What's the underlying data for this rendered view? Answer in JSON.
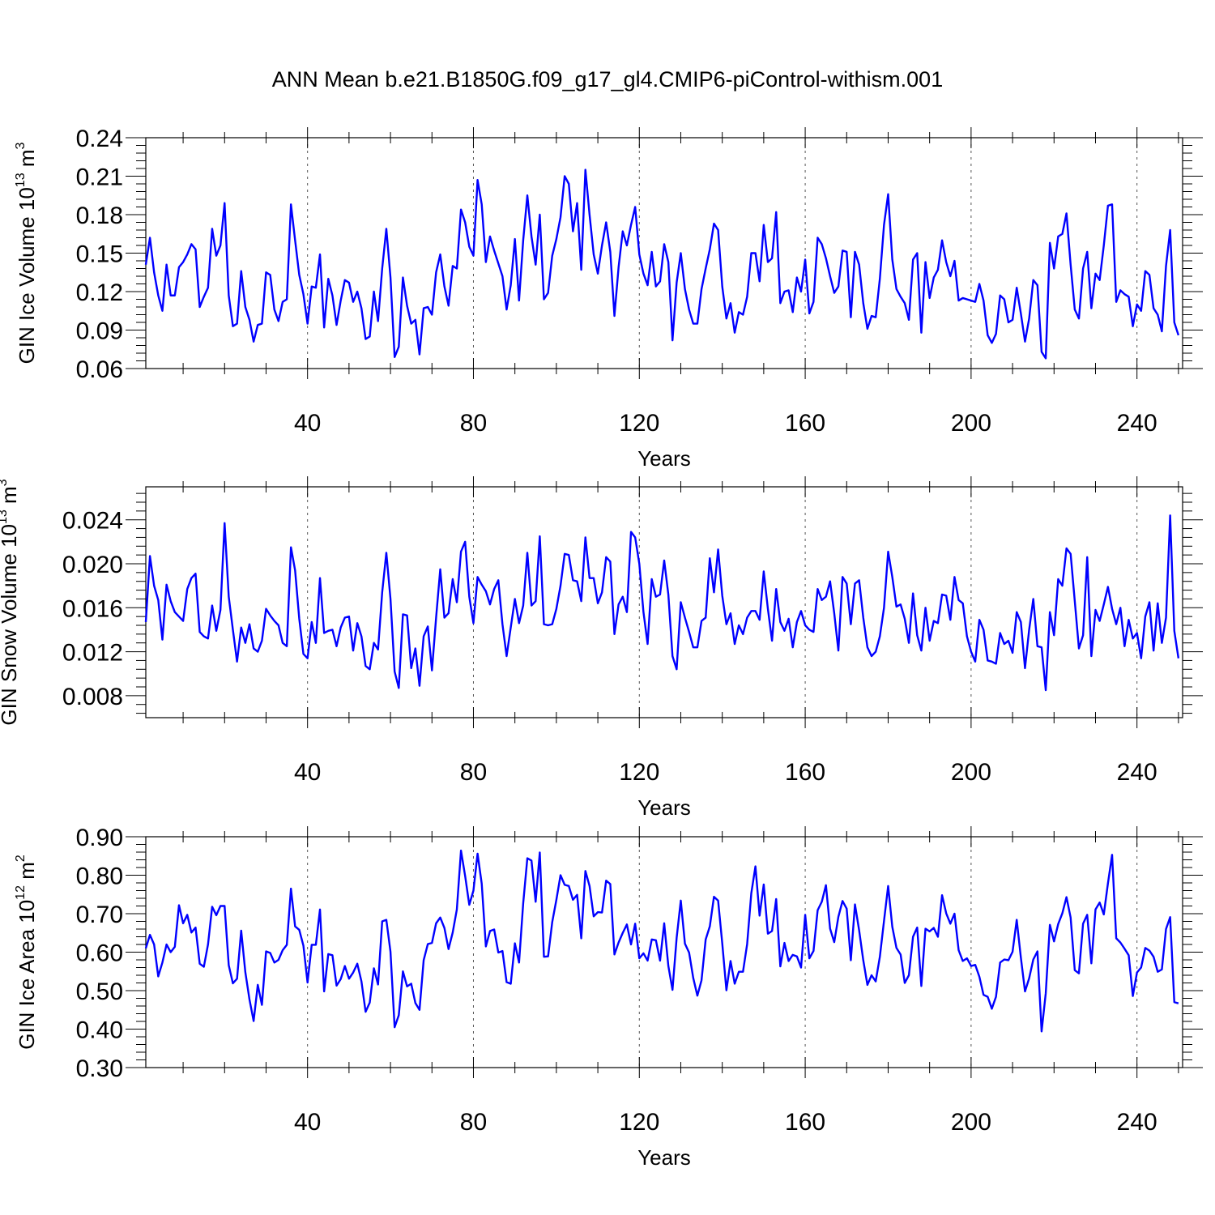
{
  "title": "ANN Mean b.e21.B1850G.f09_g17_gl4.CMIP6-piControl-withism.001",
  "line_color": "#0000ff",
  "chart_data": [
    {
      "type": "line",
      "ylabel": "GIN Ice Volume 10",
      "ylabel_exp": "13",
      "ylabel_unit": "m",
      "ylabel_unit_exp": "3",
      "xlabel": "Years",
      "xlim": [
        1,
        251
      ],
      "ylim": [
        0.06,
        0.24
      ],
      "xticks": [
        40,
        80,
        120,
        160,
        200,
        240
      ],
      "xtick_labels": [
        "40",
        "80",
        "120",
        "160",
        "200",
        "240"
      ],
      "yticks": [
        0.06,
        0.09,
        0.12,
        0.15,
        0.18,
        0.21,
        0.24
      ],
      "ytick_labels": [
        "0.06",
        "0.09",
        "0.12",
        "0.15",
        "0.18",
        "0.21",
        "0.24"
      ],
      "x_start": 1,
      "values": [
        0.141,
        0.162,
        0.135,
        0.117,
        0.105,
        0.141,
        0.117,
        0.117,
        0.139,
        0.143,
        0.149,
        0.157,
        0.153,
        0.108,
        0.116,
        0.123,
        0.169,
        0.148,
        0.156,
        0.189,
        0.117,
        0.093,
        0.095,
        0.136,
        0.108,
        0.098,
        0.081,
        0.094,
        0.095,
        0.135,
        0.133,
        0.106,
        0.097,
        0.112,
        0.114,
        0.188,
        0.16,
        0.133,
        0.118,
        0.095,
        0.124,
        0.123,
        0.149,
        0.092,
        0.13,
        0.117,
        0.094,
        0.113,
        0.129,
        0.127,
        0.112,
        0.12,
        0.107,
        0.083,
        0.085,
        0.12,
        0.097,
        0.138,
        0.169,
        0.131,
        0.069,
        0.077,
        0.131,
        0.109,
        0.095,
        0.098,
        0.071,
        0.107,
        0.108,
        0.102,
        0.135,
        0.149,
        0.124,
        0.109,
        0.14,
        0.138,
        0.184,
        0.174,
        0.155,
        0.148,
        0.207,
        0.188,
        0.143,
        0.163,
        0.152,
        0.142,
        0.132,
        0.106,
        0.125,
        0.161,
        0.113,
        0.16,
        0.195,
        0.163,
        0.141,
        0.18,
        0.114,
        0.119,
        0.148,
        0.161,
        0.178,
        0.21,
        0.204,
        0.167,
        0.189,
        0.137,
        0.215,
        0.18,
        0.149,
        0.134,
        0.156,
        0.174,
        0.151,
        0.101,
        0.139,
        0.167,
        0.156,
        0.172,
        0.186,
        0.149,
        0.134,
        0.125,
        0.151,
        0.124,
        0.128,
        0.157,
        0.143,
        0.082,
        0.127,
        0.15,
        0.122,
        0.106,
        0.095,
        0.095,
        0.122,
        0.138,
        0.153,
        0.173,
        0.168,
        0.124,
        0.099,
        0.111,
        0.088,
        0.104,
        0.102,
        0.116,
        0.15,
        0.15,
        0.128,
        0.172,
        0.143,
        0.146,
        0.182,
        0.111,
        0.12,
        0.121,
        0.104,
        0.131,
        0.12,
        0.145,
        0.103,
        0.112,
        0.162,
        0.157,
        0.146,
        0.132,
        0.119,
        0.124,
        0.152,
        0.151,
        0.1,
        0.151,
        0.141,
        0.111,
        0.091,
        0.101,
        0.1,
        0.13,
        0.172,
        0.196,
        0.145,
        0.122,
        0.116,
        0.111,
        0.098,
        0.145,
        0.15,
        0.088,
        0.143,
        0.115,
        0.131,
        0.137,
        0.16,
        0.143,
        0.132,
        0.144,
        0.113,
        0.115,
        0.114,
        0.113,
        0.112,
        0.126,
        0.113,
        0.086,
        0.08,
        0.087,
        0.117,
        0.114,
        0.096,
        0.098,
        0.123,
        0.103,
        0.081,
        0.099,
        0.129,
        0.125,
        0.073,
        0.068,
        0.158,
        0.138,
        0.163,
        0.165,
        0.181,
        0.141,
        0.106,
        0.099,
        0.138,
        0.151,
        0.107,
        0.134,
        0.129,
        0.156,
        0.187,
        0.188,
        0.112,
        0.121,
        0.118,
        0.116,
        0.093,
        0.11,
        0.105,
        0.136,
        0.133,
        0.107,
        0.102,
        0.089,
        0.14,
        0.168,
        0.096,
        0.086
      ]
    },
    {
      "type": "line",
      "ylabel": "GIN Snow Volume 10",
      "ylabel_exp": "13",
      "ylabel_unit": "m",
      "ylabel_unit_exp": "3",
      "xlabel": "Years",
      "xlim": [
        1,
        251
      ],
      "ylim": [
        0.006,
        0.027
      ],
      "xticks": [
        40,
        80,
        120,
        160,
        200,
        240
      ],
      "xtick_labels": [
        "40",
        "80",
        "120",
        "160",
        "200",
        "240"
      ],
      "yticks": [
        0.008,
        0.012,
        0.016,
        0.02,
        0.024
      ],
      "ytick_labels": [
        "0.008",
        "0.012",
        "0.016",
        "0.020",
        "0.024"
      ],
      "x_start": 1,
      "values": [
        0.0147,
        0.0207,
        0.018,
        0.0167,
        0.0131,
        0.0181,
        0.0166,
        0.0156,
        0.0152,
        0.0148,
        0.0177,
        0.0187,
        0.0191,
        0.0138,
        0.0134,
        0.0132,
        0.0162,
        0.0139,
        0.0158,
        0.0237,
        0.017,
        0.014,
        0.0111,
        0.0142,
        0.0128,
        0.0145,
        0.0123,
        0.012,
        0.013,
        0.0159,
        0.0153,
        0.0148,
        0.0144,
        0.0128,
        0.0125,
        0.0215,
        0.0194,
        0.015,
        0.0118,
        0.0114,
        0.0147,
        0.0128,
        0.0187,
        0.0137,
        0.0139,
        0.014,
        0.0125,
        0.0142,
        0.0151,
        0.0152,
        0.0121,
        0.0146,
        0.0134,
        0.0107,
        0.0104,
        0.0128,
        0.0122,
        0.0174,
        0.021,
        0.0168,
        0.0102,
        0.0087,
        0.0154,
        0.0153,
        0.0105,
        0.0123,
        0.0089,
        0.0134,
        0.0143,
        0.0103,
        0.0151,
        0.0195,
        0.0151,
        0.0155,
        0.0186,
        0.0165,
        0.0211,
        0.022,
        0.017,
        0.0146,
        0.0188,
        0.0181,
        0.0175,
        0.0163,
        0.0177,
        0.0185,
        0.0145,
        0.0116,
        0.0142,
        0.0168,
        0.0146,
        0.0162,
        0.021,
        0.0162,
        0.0166,
        0.0225,
        0.0145,
        0.0144,
        0.0145,
        0.0159,
        0.018,
        0.0209,
        0.0208,
        0.0185,
        0.0184,
        0.0166,
        0.0224,
        0.0187,
        0.0187,
        0.0164,
        0.0174,
        0.0206,
        0.0202,
        0.0136,
        0.0163,
        0.017,
        0.0156,
        0.0229,
        0.0224,
        0.02,
        0.0156,
        0.0127,
        0.0186,
        0.017,
        0.0172,
        0.0203,
        0.0172,
        0.0116,
        0.0104,
        0.0165,
        0.0151,
        0.0138,
        0.0124,
        0.0124,
        0.0148,
        0.0151,
        0.0205,
        0.0174,
        0.0213,
        0.0171,
        0.0145,
        0.0155,
        0.0127,
        0.0144,
        0.0136,
        0.0151,
        0.0157,
        0.0157,
        0.0149,
        0.0193,
        0.0159,
        0.013,
        0.0177,
        0.0147,
        0.0139,
        0.015,
        0.0124,
        0.0147,
        0.0157,
        0.0144,
        0.014,
        0.0138,
        0.0177,
        0.0167,
        0.017,
        0.0184,
        0.0155,
        0.0121,
        0.0188,
        0.0182,
        0.0145,
        0.0182,
        0.0185,
        0.0151,
        0.0124,
        0.0116,
        0.012,
        0.0134,
        0.016,
        0.0211,
        0.0188,
        0.0161,
        0.0163,
        0.015,
        0.0128,
        0.0173,
        0.0135,
        0.0121,
        0.016,
        0.013,
        0.0148,
        0.0146,
        0.0172,
        0.0171,
        0.0149,
        0.0188,
        0.0167,
        0.0164,
        0.0134,
        0.012,
        0.0111,
        0.0149,
        0.014,
        0.0112,
        0.0111,
        0.0109,
        0.0137,
        0.0127,
        0.013,
        0.0119,
        0.0156,
        0.0147,
        0.0105,
        0.014,
        0.0168,
        0.0125,
        0.0124,
        0.0085,
        0.0156,
        0.0135,
        0.0186,
        0.018,
        0.0214,
        0.0209,
        0.0166,
        0.0123,
        0.0135,
        0.0206,
        0.0116,
        0.0158,
        0.0148,
        0.0163,
        0.0179,
        0.0159,
        0.0145,
        0.016,
        0.0125,
        0.0149,
        0.0132,
        0.0137,
        0.0114,
        0.0152,
        0.0165,
        0.0121,
        0.0164,
        0.0128,
        0.0151,
        0.0244,
        0.0139,
        0.0114
      ]
    },
    {
      "type": "line",
      "ylabel": "GIN Ice Area 10",
      "ylabel_exp": "12",
      "ylabel_unit": "m",
      "ylabel_unit_exp": "2",
      "xlabel": "Years",
      "xlim": [
        1,
        251
      ],
      "ylim": [
        0.3,
        0.9
      ],
      "xticks": [
        40,
        80,
        120,
        160,
        200,
        240
      ],
      "xtick_labels": [
        "40",
        "80",
        "120",
        "160",
        "200",
        "240"
      ],
      "yticks": [
        0.3,
        0.4,
        0.5,
        0.6,
        0.7,
        0.8,
        0.9
      ],
      "ytick_labels": [
        "0.30",
        "0.40",
        "0.50",
        "0.60",
        "0.70",
        "0.80",
        "0.90"
      ],
      "x_start": 1,
      "values": [
        0.61,
        0.645,
        0.62,
        0.537,
        0.573,
        0.62,
        0.6,
        0.614,
        0.722,
        0.675,
        0.697,
        0.651,
        0.664,
        0.57,
        0.562,
        0.62,
        0.718,
        0.696,
        0.72,
        0.72,
        0.566,
        0.519,
        0.531,
        0.656,
        0.548,
        0.477,
        0.421,
        0.515,
        0.463,
        0.602,
        0.598,
        0.573,
        0.58,
        0.605,
        0.619,
        0.765,
        0.667,
        0.658,
        0.617,
        0.521,
        0.619,
        0.619,
        0.711,
        0.498,
        0.595,
        0.592,
        0.513,
        0.53,
        0.564,
        0.531,
        0.547,
        0.57,
        0.524,
        0.445,
        0.469,
        0.558,
        0.516,
        0.68,
        0.684,
        0.601,
        0.405,
        0.436,
        0.55,
        0.511,
        0.518,
        0.468,
        0.45,
        0.579,
        0.621,
        0.624,
        0.675,
        0.69,
        0.663,
        0.608,
        0.651,
        0.711,
        0.864,
        0.798,
        0.723,
        0.76,
        0.856,
        0.778,
        0.615,
        0.655,
        0.659,
        0.599,
        0.603,
        0.522,
        0.518,
        0.623,
        0.573,
        0.727,
        0.844,
        0.838,
        0.731,
        0.859,
        0.588,
        0.589,
        0.678,
        0.736,
        0.8,
        0.775,
        0.772,
        0.736,
        0.749,
        0.636,
        0.811,
        0.772,
        0.693,
        0.704,
        0.703,
        0.786,
        0.777,
        0.594,
        0.625,
        0.65,
        0.672,
        0.62,
        0.674,
        0.584,
        0.597,
        0.578,
        0.633,
        0.631,
        0.578,
        0.675,
        0.564,
        0.502,
        0.637,
        0.734,
        0.622,
        0.599,
        0.533,
        0.487,
        0.527,
        0.633,
        0.667,
        0.744,
        0.734,
        0.623,
        0.501,
        0.577,
        0.518,
        0.549,
        0.549,
        0.621,
        0.753,
        0.823,
        0.695,
        0.776,
        0.648,
        0.655,
        0.738,
        0.563,
        0.624,
        0.577,
        0.593,
        0.589,
        0.56,
        0.697,
        0.584,
        0.603,
        0.709,
        0.731,
        0.774,
        0.661,
        0.626,
        0.692,
        0.733,
        0.713,
        0.579,
        0.724,
        0.657,
        0.579,
        0.515,
        0.54,
        0.524,
        0.588,
        0.681,
        0.772,
        0.666,
        0.611,
        0.594,
        0.52,
        0.54,
        0.64,
        0.664,
        0.512,
        0.661,
        0.654,
        0.663,
        0.64,
        0.748,
        0.701,
        0.674,
        0.7,
        0.605,
        0.577,
        0.584,
        0.564,
        0.567,
        0.536,
        0.489,
        0.484,
        0.453,
        0.484,
        0.573,
        0.581,
        0.579,
        0.601,
        0.684,
        0.586,
        0.498,
        0.532,
        0.581,
        0.602,
        0.394,
        0.493,
        0.671,
        0.628,
        0.673,
        0.701,
        0.743,
        0.69,
        0.553,
        0.545,
        0.674,
        0.697,
        0.571,
        0.711,
        0.729,
        0.698,
        0.779,
        0.853,
        0.636,
        0.625,
        0.609,
        0.592,
        0.486,
        0.547,
        0.56,
        0.611,
        0.604,
        0.588,
        0.549,
        0.555,
        0.66,
        0.691,
        0.47,
        0.467
      ]
    }
  ]
}
